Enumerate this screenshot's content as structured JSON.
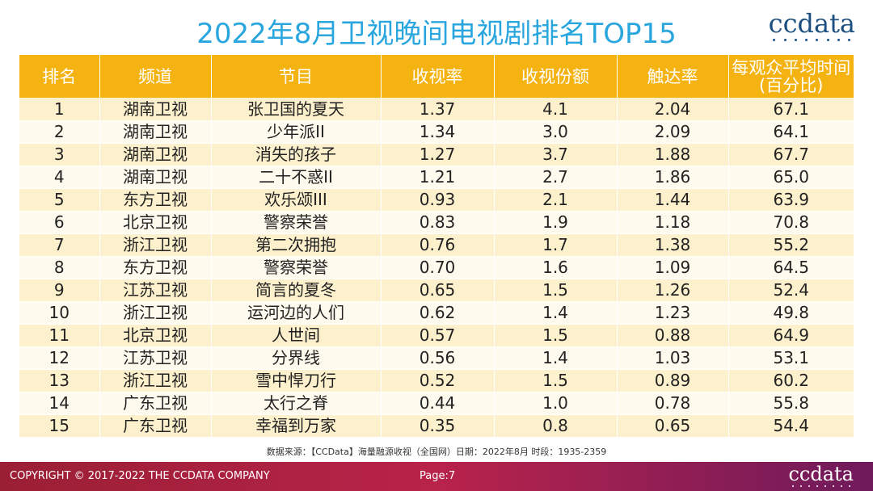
{
  "title": "2022年8月卫视晚间电视剧排名TOP15",
  "logo": "ccdata",
  "table": {
    "headers": {
      "rank": "排名",
      "channel": "频道",
      "program": "节目",
      "rating": "收视率",
      "share": "收视份额",
      "reach": "触达率",
      "time_line1": "每观众平均时间",
      "time_line2": "(百分比)"
    },
    "rows": [
      {
        "rank": "1",
        "channel": "湖南卫视",
        "program": "张卫国的夏天",
        "rating": "1.37",
        "share": "4.1",
        "reach": "2.04",
        "time": "67.1"
      },
      {
        "rank": "2",
        "channel": "湖南卫视",
        "program": "少年派II",
        "rating": "1.34",
        "share": "3.0",
        "reach": "2.09",
        "time": "64.1"
      },
      {
        "rank": "3",
        "channel": "湖南卫视",
        "program": "消失的孩子",
        "rating": "1.27",
        "share": "3.7",
        "reach": "1.88",
        "time": "67.7"
      },
      {
        "rank": "4",
        "channel": "湖南卫视",
        "program": "二十不惑II",
        "rating": "1.21",
        "share": "2.7",
        "reach": "1.86",
        "time": "65.0"
      },
      {
        "rank": "5",
        "channel": "东方卫视",
        "program": "欢乐颂III",
        "rating": "0.93",
        "share": "2.1",
        "reach": "1.44",
        "time": "63.9"
      },
      {
        "rank": "6",
        "channel": "北京卫视",
        "program": "警察荣誉",
        "rating": "0.83",
        "share": "1.9",
        "reach": "1.18",
        "time": "70.8"
      },
      {
        "rank": "7",
        "channel": "浙江卫视",
        "program": "第二次拥抱",
        "rating": "0.76",
        "share": "1.7",
        "reach": "1.38",
        "time": "55.2"
      },
      {
        "rank": "8",
        "channel": "东方卫视",
        "program": "警察荣誉",
        "rating": "0.70",
        "share": "1.6",
        "reach": "1.09",
        "time": "64.5"
      },
      {
        "rank": "9",
        "channel": "江苏卫视",
        "program": "简言的夏冬",
        "rating": "0.65",
        "share": "1.5",
        "reach": "1.26",
        "time": "52.4"
      },
      {
        "rank": "10",
        "channel": "浙江卫视",
        "program": "运河边的人们",
        "rating": "0.62",
        "share": "1.4",
        "reach": "1.23",
        "time": "49.8"
      },
      {
        "rank": "11",
        "channel": "北京卫视",
        "program": "人世间",
        "rating": "0.57",
        "share": "1.5",
        "reach": "0.88",
        "time": "64.9"
      },
      {
        "rank": "12",
        "channel": "江苏卫视",
        "program": "分界线",
        "rating": "0.56",
        "share": "1.4",
        "reach": "1.03",
        "time": "53.1"
      },
      {
        "rank": "13",
        "channel": "浙江卫视",
        "program": "雪中悍刀行",
        "rating": "0.52",
        "share": "1.5",
        "reach": "0.89",
        "time": "60.2"
      },
      {
        "rank": "14",
        "channel": "广东卫视",
        "program": "太行之脊",
        "rating": "0.44",
        "share": "1.0",
        "reach": "0.78",
        "time": "55.8"
      },
      {
        "rank": "15",
        "channel": "广东卫视",
        "program": "幸福到万家",
        "rating": "0.35",
        "share": "0.8",
        "reach": "0.65",
        "time": "54.4"
      }
    ]
  },
  "source": "数据来源：【CCData】海量融源收视（全国网）日期：2022年8月  时段：1935-2359",
  "footer": {
    "copyright": "COPYRIGHT © 2017-2022 THE CCDATA COMPANY",
    "page": "Page:7",
    "logo": "ccdata"
  },
  "colors": {
    "title": "#2aa6df",
    "header_bg": "#f5b312",
    "row_odd": "#fdf0cc",
    "row_even": "#fefaee",
    "footer_bg": "#b8234a"
  }
}
